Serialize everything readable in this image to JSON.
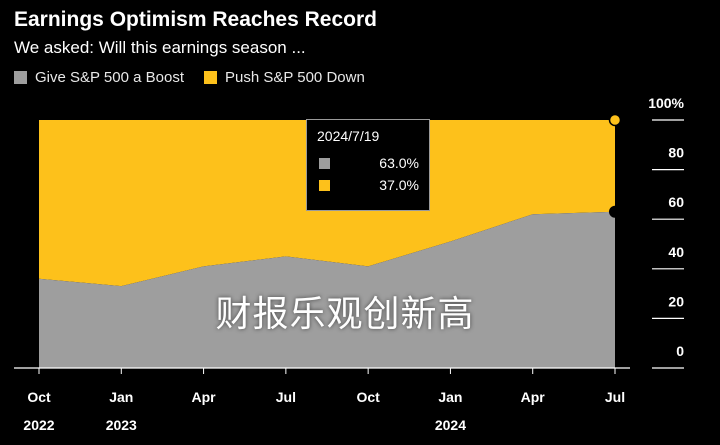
{
  "header": {
    "title": "Earnings Optimism Reaches Record",
    "subtitle": "We asked: Will this earnings season ..."
  },
  "colors": {
    "boost": "#9e9e9e",
    "down": "#fdc11b",
    "background": "#000000"
  },
  "tooltip": {
    "date": "2024/7/19",
    "boost_value": "63.0%",
    "down_value": "37.0%"
  },
  "overlay_text": "财报乐观创新高",
  "chart_data": {
    "type": "area",
    "stacked": true,
    "title": "Earnings Optimism Reaches Record",
    "subtitle": "We asked: Will this earnings season ...",
    "x": [
      "2022-10",
      "2023-01",
      "2023-04",
      "2023-07",
      "2023-10",
      "2024-01",
      "2024-04",
      "2024-07-19"
    ],
    "series": [
      {
        "name": "Give S&P 500 a Boost",
        "color": "#9e9e9e",
        "values": [
          36,
          33,
          41,
          45,
          41,
          51,
          62,
          63
        ]
      },
      {
        "name": "Push S&P 500 Down",
        "color": "#fdc11b",
        "values": [
          64,
          67,
          59,
          55,
          59,
          49,
          38,
          37
        ]
      }
    ],
    "x_ticks": [
      {
        "label": "Oct",
        "year": "2022",
        "index": 0
      },
      {
        "label": "Jan",
        "year": "2023",
        "index": 1
      },
      {
        "label": "Apr",
        "year": "",
        "index": 2
      },
      {
        "label": "Jul",
        "year": "",
        "index": 3
      },
      {
        "label": "Oct",
        "year": "",
        "index": 4
      },
      {
        "label": "Jan",
        "year": "2024",
        "index": 5
      },
      {
        "label": "Apr",
        "year": "",
        "index": 6
      },
      {
        "label": "Jul",
        "year": "",
        "index": 7
      }
    ],
    "y_ticks": [
      "0",
      "20",
      "40",
      "60",
      "80",
      "100%"
    ],
    "ylim": [
      0,
      100
    ],
    "axis_position": "right",
    "legend_position": "top-left",
    "grid": false
  }
}
